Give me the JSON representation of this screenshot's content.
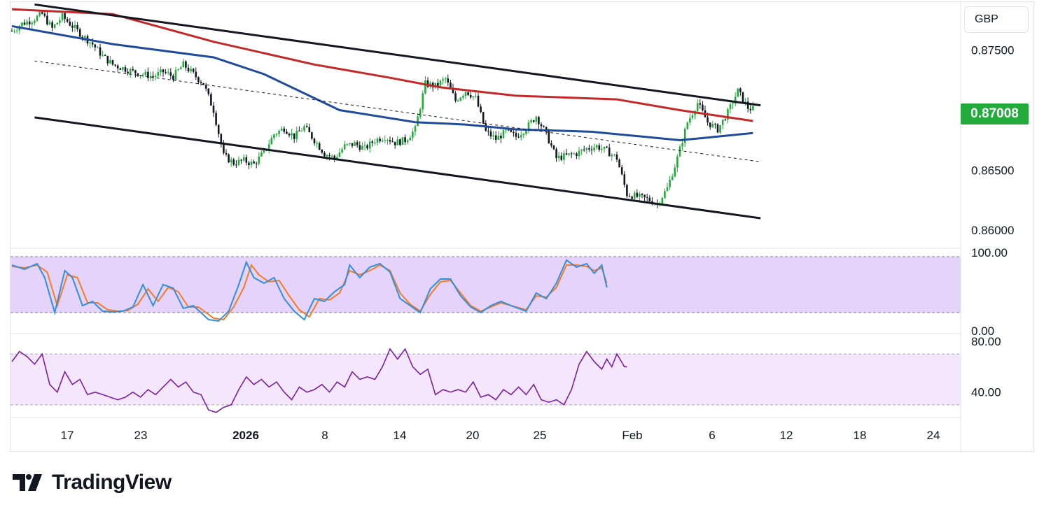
{
  "header": {
    "currency": "GBP"
  },
  "price_tag": "0.87008",
  "brand": {
    "name": "TradingView"
  },
  "colors": {
    "up": "#22ab3c",
    "down": "#131722",
    "ma_long": "#c62828",
    "ma_short": "#1e4b9b",
    "stoch_k": "#2f8fe3",
    "stoch_d": "#f57c22",
    "rsi": "#7b1fa2",
    "stoch_band": "#e5d3fb",
    "rsi_band": "#f3e6fd"
  },
  "price_axis": {
    "labels": [
      "0.87500",
      "0.86500",
      "0.86000"
    ]
  },
  "stoch_axis": {
    "labels": [
      "100.00",
      "0.00"
    ]
  },
  "rsi_axis": {
    "labels": [
      "80.00",
      "40.00"
    ]
  },
  "x_axis": {
    "labels": [
      {
        "text": "17",
        "bold": false
      },
      {
        "text": "23",
        "bold": false
      },
      {
        "text": "2026",
        "bold": true
      },
      {
        "text": "8",
        "bold": false
      },
      {
        "text": "14",
        "bold": false
      },
      {
        "text": "20",
        "bold": false
      },
      {
        "text": "25",
        "bold": false
      },
      {
        "text": "Feb",
        "bold": false
      },
      {
        "text": "6",
        "bold": false
      },
      {
        "text": "12",
        "bold": false
      },
      {
        "text": "18",
        "bold": false
      },
      {
        "text": "24",
        "bold": false
      }
    ]
  },
  "chart_data": [
    {
      "type": "candlestick",
      "title": "",
      "currency": "GBP",
      "y_unit": "GBP",
      "ylim": [
        0.8585,
        0.879
      ],
      "last_price": 0.87008,
      "x_tick_labels": [
        "17",
        "23",
        "2026",
        "8",
        "14",
        "20",
        "25",
        "Feb",
        "6",
        "12",
        "18",
        "24"
      ],
      "close_path": [
        [
          0,
          0.8766
        ],
        [
          4,
          0.8772
        ],
        [
          8,
          0.8775
        ],
        [
          12,
          0.878
        ],
        [
          16,
          0.8768
        ],
        [
          20,
          0.8778
        ],
        [
          24,
          0.877
        ],
        [
          28,
          0.8762
        ],
        [
          32,
          0.8755
        ],
        [
          36,
          0.8745
        ],
        [
          40,
          0.8738
        ],
        [
          44,
          0.8735
        ],
        [
          48,
          0.8732
        ],
        [
          52,
          0.873
        ],
        [
          56,
          0.8728
        ],
        [
          60,
          0.8732
        ],
        [
          64,
          0.8728
        ],
        [
          68,
          0.8738
        ],
        [
          72,
          0.873
        ],
        [
          76,
          0.8722
        ],
        [
          80,
          0.87
        ],
        [
          84,
          0.8662
        ],
        [
          88,
          0.8656
        ],
        [
          92,
          0.8658
        ],
        [
          96,
          0.8655
        ],
        [
          100,
          0.8665
        ],
        [
          104,
          0.868
        ],
        [
          108,
          0.8685
        ],
        [
          112,
          0.8678
        ],
        [
          116,
          0.8686
        ],
        [
          120,
          0.8675
        ],
        [
          124,
          0.8664
        ],
        [
          128,
          0.866
        ],
        [
          132,
          0.867
        ],
        [
          136,
          0.8672
        ],
        [
          140,
          0.8668
        ],
        [
          144,
          0.8675
        ],
        [
          148,
          0.8678
        ],
        [
          152,
          0.8673
        ],
        [
          156,
          0.8675
        ],
        [
          160,
          0.8684
        ],
        [
          164,
          0.8722
        ],
        [
          168,
          0.872
        ],
        [
          172,
          0.8726
        ],
        [
          176,
          0.8708
        ],
        [
          180,
          0.8716
        ],
        [
          184,
          0.871
        ],
        [
          188,
          0.8682
        ],
        [
          192,
          0.8676
        ],
        [
          196,
          0.8682
        ],
        [
          200,
          0.8678
        ],
        [
          204,
          0.8685
        ],
        [
          208,
          0.8695
        ],
        [
          212,
          0.868
        ],
        [
          216,
          0.866
        ],
        [
          220,
          0.8662
        ],
        [
          224,
          0.8664
        ],
        [
          228,
          0.8668
        ],
        [
          232,
          0.867
        ],
        [
          236,
          0.8666
        ],
        [
          240,
          0.866
        ],
        [
          244,
          0.863
        ],
        [
          248,
          0.8628
        ],
        [
          252,
          0.8626
        ],
        [
          256,
          0.8622
        ],
        [
          260,
          0.8635
        ],
        [
          264,
          0.866
        ],
        [
          268,
          0.869
        ],
        [
          272,
          0.8706
        ],
        [
          276,
          0.869
        ],
        [
          280,
          0.8684
        ],
        [
          284,
          0.8698
        ],
        [
          288,
          0.8716
        ],
        [
          292,
          0.8702
        ],
        [
          294,
          0.87008
        ]
      ],
      "ma_long_path": [
        [
          0,
          0.8784
        ],
        [
          40,
          0.878
        ],
        [
          80,
          0.8757
        ],
        [
          120,
          0.8738
        ],
        [
          150,
          0.8727
        ],
        [
          170,
          0.8719
        ],
        [
          200,
          0.8712
        ],
        [
          240,
          0.8709
        ],
        [
          265,
          0.87
        ],
        [
          294,
          0.8691
        ]
      ],
      "ma_short_path": [
        [
          0,
          0.877
        ],
        [
          40,
          0.8755
        ],
        [
          80,
          0.8744
        ],
        [
          100,
          0.873
        ],
        [
          130,
          0.87
        ],
        [
          160,
          0.869
        ],
        [
          180,
          0.8688
        ],
        [
          200,
          0.8684
        ],
        [
          230,
          0.8682
        ],
        [
          250,
          0.8678
        ],
        [
          265,
          0.8675
        ],
        [
          280,
          0.8678
        ],
        [
          294,
          0.8681
        ]
      ],
      "trendlines": [
        {
          "name": "upper-channel",
          "points": [
            [
              9,
              0.8788
            ],
            [
              297,
              0.8704
            ]
          ]
        },
        {
          "name": "lower-channel",
          "points": [
            [
              9,
              0.8694
            ],
            [
              297,
              0.861
            ]
          ]
        },
        {
          "name": "mid-channel",
          "points": [
            [
              9,
              0.8741
            ],
            [
              297,
              0.8657
            ]
          ],
          "style": "dashed"
        }
      ]
    },
    {
      "type": "line",
      "name": "stochastic",
      "ylim": [
        0,
        100
      ],
      "bands": [
        20,
        80
      ],
      "k_path": [
        [
          0,
          88
        ],
        [
          5,
          82
        ],
        [
          10,
          90
        ],
        [
          13,
          70
        ],
        [
          17,
          20
        ],
        [
          21,
          80
        ],
        [
          24,
          70
        ],
        [
          28,
          30
        ],
        [
          32,
          36
        ],
        [
          36,
          22
        ],
        [
          40,
          21
        ],
        [
          44,
          22
        ],
        [
          48,
          28
        ],
        [
          52,
          60
        ],
        [
          56,
          30
        ],
        [
          60,
          60
        ],
        [
          64,
          55
        ],
        [
          68,
          26
        ],
        [
          72,
          30
        ],
        [
          78,
          10
        ],
        [
          82,
          8
        ],
        [
          86,
          22
        ],
        [
          90,
          60
        ],
        [
          93,
          92
        ],
        [
          96,
          70
        ],
        [
          100,
          62
        ],
        [
          104,
          70
        ],
        [
          108,
          40
        ],
        [
          112,
          22
        ],
        [
          116,
          10
        ],
        [
          120,
          40
        ],
        [
          124,
          36
        ],
        [
          128,
          50
        ],
        [
          132,
          60
        ],
        [
          134,
          88
        ],
        [
          138,
          70
        ],
        [
          142,
          85
        ],
        [
          146,
          90
        ],
        [
          150,
          78
        ],
        [
          154,
          40
        ],
        [
          158,
          30
        ],
        [
          162,
          20
        ],
        [
          166,
          54
        ],
        [
          170,
          68
        ],
        [
          174,
          68
        ],
        [
          178,
          44
        ],
        [
          182,
          28
        ],
        [
          186,
          20
        ],
        [
          190,
          30
        ],
        [
          194,
          36
        ],
        [
          198,
          30
        ],
        [
          204,
          22
        ],
        [
          208,
          48
        ],
        [
          212,
          40
        ],
        [
          216,
          62
        ],
        [
          220,
          95
        ],
        [
          224,
          85
        ],
        [
          228,
          90
        ],
        [
          231,
          76
        ],
        [
          234,
          88
        ],
        [
          236,
          56
        ]
      ],
      "d_path": [
        [
          0,
          86
        ],
        [
          5,
          84
        ],
        [
          10,
          88
        ],
        [
          14,
          78
        ],
        [
          18,
          30
        ],
        [
          22,
          74
        ],
        [
          26,
          70
        ],
        [
          30,
          34
        ],
        [
          34,
          34
        ],
        [
          38,
          24
        ],
        [
          42,
          22
        ],
        [
          46,
          23
        ],
        [
          50,
          32
        ],
        [
          54,
          54
        ],
        [
          58,
          36
        ],
        [
          62,
          56
        ],
        [
          66,
          50
        ],
        [
          70,
          28
        ],
        [
          74,
          28
        ],
        [
          80,
          12
        ],
        [
          84,
          10
        ],
        [
          88,
          28
        ],
        [
          92,
          56
        ],
        [
          95,
          88
        ],
        [
          98,
          74
        ],
        [
          102,
          64
        ],
        [
          106,
          66
        ],
        [
          110,
          44
        ],
        [
          114,
          24
        ],
        [
          118,
          14
        ],
        [
          122,
          40
        ],
        [
          126,
          38
        ],
        [
          130,
          48
        ],
        [
          134,
          80
        ],
        [
          138,
          74
        ],
        [
          142,
          80
        ],
        [
          146,
          88
        ],
        [
          150,
          80
        ],
        [
          154,
          48
        ],
        [
          158,
          32
        ],
        [
          162,
          22
        ],
        [
          166,
          46
        ],
        [
          170,
          64
        ],
        [
          174,
          66
        ],
        [
          178,
          48
        ],
        [
          182,
          30
        ],
        [
          186,
          22
        ],
        [
          190,
          28
        ],
        [
          194,
          34
        ],
        [
          198,
          30
        ],
        [
          204,
          24
        ],
        [
          208,
          44
        ],
        [
          212,
          42
        ],
        [
          216,
          56
        ],
        [
          220,
          88
        ],
        [
          224,
          88
        ],
        [
          228,
          86
        ],
        [
          231,
          80
        ],
        [
          234,
          84
        ],
        [
          236,
          62
        ]
      ]
    },
    {
      "type": "line",
      "name": "rsi",
      "ylim": [
        20,
        85
      ],
      "bands": [
        30,
        70
      ],
      "rsi_path": [
        [
          0,
          64
        ],
        [
          3,
          72
        ],
        [
          6,
          68
        ],
        [
          9,
          62
        ],
        [
          12,
          70
        ],
        [
          15,
          46
        ],
        [
          18,
          40
        ],
        [
          21,
          56
        ],
        [
          24,
          46
        ],
        [
          27,
          50
        ],
        [
          30,
          38
        ],
        [
          33,
          40
        ],
        [
          36,
          38
        ],
        [
          39,
          36
        ],
        [
          42,
          34
        ],
        [
          45,
          36
        ],
        [
          48,
          40
        ],
        [
          51,
          36
        ],
        [
          54,
          42
        ],
        [
          57,
          38
        ],
        [
          60,
          44
        ],
        [
          63,
          50
        ],
        [
          66,
          44
        ],
        [
          69,
          48
        ],
        [
          72,
          40
        ],
        [
          75,
          38
        ],
        [
          78,
          26
        ],
        [
          81,
          24
        ],
        [
          84,
          28
        ],
        [
          87,
          30
        ],
        [
          90,
          42
        ],
        [
          93,
          52
        ],
        [
          96,
          46
        ],
        [
          99,
          50
        ],
        [
          102,
          44
        ],
        [
          105,
          48
        ],
        [
          108,
          40
        ],
        [
          111,
          34
        ],
        [
          114,
          44
        ],
        [
          117,
          40
        ],
        [
          120,
          42
        ],
        [
          123,
          46
        ],
        [
          126,
          40
        ],
        [
          129,
          48
        ],
        [
          132,
          44
        ],
        [
          135,
          56
        ],
        [
          138,
          50
        ],
        [
          141,
          52
        ],
        [
          144,
          50
        ],
        [
          147,
          60
        ],
        [
          150,
          74
        ],
        [
          153,
          66
        ],
        [
          156,
          74
        ],
        [
          159,
          60
        ],
        [
          162,
          54
        ],
        [
          165,
          58
        ],
        [
          168,
          38
        ],
        [
          171,
          42
        ],
        [
          174,
          40
        ],
        [
          177,
          42
        ],
        [
          180,
          40
        ],
        [
          183,
          48
        ],
        [
          186,
          36
        ],
        [
          189,
          38
        ],
        [
          192,
          34
        ],
        [
          195,
          42
        ],
        [
          198,
          38
        ],
        [
          201,
          44
        ],
        [
          204,
          38
        ],
        [
          207,
          46
        ],
        [
          210,
          34
        ],
        [
          213,
          32
        ],
        [
          216,
          34
        ],
        [
          219,
          30
        ],
        [
          222,
          42
        ],
        [
          225,
          62
        ],
        [
          228,
          72
        ],
        [
          231,
          64
        ],
        [
          234,
          58
        ],
        [
          236,
          66
        ],
        [
          238,
          60
        ],
        [
          240,
          70
        ],
        [
          243,
          60
        ],
        [
          244,
          60
        ]
      ]
    }
  ]
}
